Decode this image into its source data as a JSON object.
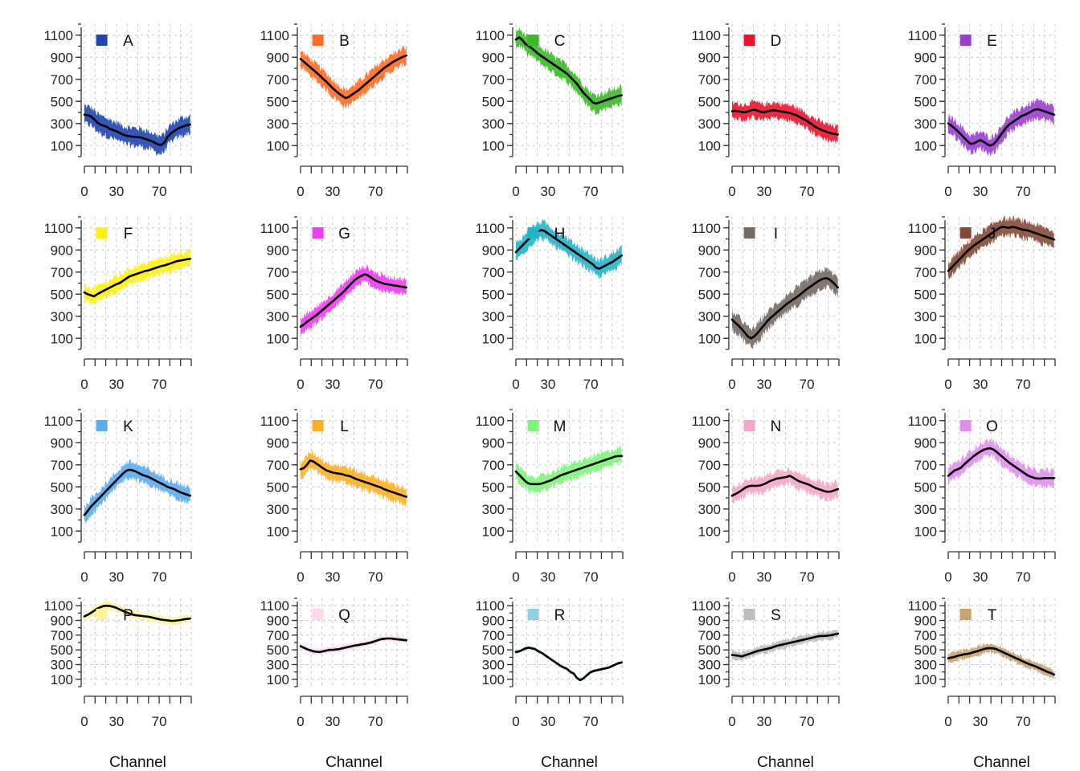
{
  "chart_data": {
    "type": "area",
    "layout": "small-multiples 4 rows x 5 columns",
    "grid": true,
    "legend_placement": "top-left inside each panel",
    "x": [
      0,
      3,
      6,
      9,
      12,
      15,
      18,
      21,
      24,
      27,
      30,
      33,
      36,
      39,
      42,
      45,
      48,
      51,
      54,
      57,
      60,
      63,
      66,
      69,
      72,
      75,
      78,
      81,
      84,
      87,
      90,
      93,
      96,
      99
    ],
    "xlim": [
      0,
      100
    ],
    "xticks": [
      0,
      30,
      70
    ],
    "ylim": [
      0,
      1200
    ],
    "yticks": [
      100,
      300,
      500,
      700,
      900,
      1100
    ],
    "panels": [
      {
        "name": "A",
        "color": "#1f45b0",
        "mean": [
          380,
          375,
          365,
          340,
          310,
          290,
          280,
          270,
          250,
          240,
          230,
          215,
          200,
          190,
          185,
          180,
          178,
          176,
          170,
          160,
          150,
          140,
          125,
          110,
          105,
          130,
          180,
          210,
          230,
          250,
          265,
          275,
          285,
          290
        ],
        "band": 80
      },
      {
        "name": "B",
        "color": "#ff6a26",
        "mean": [
          885,
          860,
          835,
          810,
          785,
          760,
          735,
          705,
          680,
          650,
          620,
          595,
          570,
          550,
          530,
          540,
          560,
          580,
          600,
          625,
          650,
          675,
          700,
          725,
          750,
          775,
          800,
          820,
          840,
          860,
          875,
          890,
          905,
          915
        ],
        "band": 75
      },
      {
        "name": "C",
        "color": "#3db82a",
        "mean": [
          1060,
          1080,
          1055,
          1020,
          1000,
          980,
          955,
          930,
          910,
          890,
          870,
          850,
          830,
          810,
          790,
          770,
          750,
          720,
          690,
          660,
          620,
          580,
          550,
          520,
          490,
          480,
          490,
          500,
          510,
          520,
          530,
          540,
          550,
          555
        ],
        "band": 75
      },
      {
        "name": "D",
        "color": "#e8142e",
        "mean": [
          410,
          415,
          410,
          405,
          400,
          410,
          420,
          425,
          415,
          405,
          400,
          410,
          415,
          420,
          415,
          410,
          405,
          400,
          395,
          385,
          375,
          360,
          345,
          330,
          310,
          290,
          270,
          255,
          240,
          230,
          220,
          210,
          205,
          200
        ],
        "band": 70
      },
      {
        "name": "E",
        "color": "#9b3fd0",
        "mean": [
          300,
          280,
          255,
          230,
          200,
          170,
          140,
          115,
          120,
          135,
          150,
          135,
          115,
          100,
          110,
          140,
          180,
          220,
          260,
          290,
          310,
          330,
          350,
          370,
          380,
          395,
          410,
          425,
          430,
          420,
          410,
          400,
          390,
          380
        ],
        "band": 75
      },
      {
        "name": "F",
        "color": "#ffee1a",
        "mean": [
          515,
          500,
          490,
          480,
          500,
          515,
          530,
          545,
          560,
          575,
          590,
          600,
          620,
          640,
          660,
          670,
          680,
          690,
          700,
          710,
          715,
          725,
          735,
          745,
          755,
          760,
          770,
          780,
          790,
          800,
          805,
          810,
          815,
          820
        ],
        "band": 70
      },
      {
        "name": "G",
        "color": "#f03cf0",
        "mean": [
          205,
          225,
          250,
          270,
          290,
          310,
          335,
          360,
          385,
          410,
          435,
          460,
          485,
          510,
          540,
          570,
          600,
          630,
          650,
          665,
          680,
          670,
          650,
          630,
          615,
          605,
          595,
          590,
          585,
          580,
          575,
          570,
          565,
          560
        ],
        "band": 70
      },
      {
        "name": "H",
        "color": "#26b3c8",
        "mean": [
          880,
          910,
          940,
          970,
          1000,
          1030,
          1050,
          1070,
          1080,
          1070,
          1050,
          1030,
          1010,
          990,
          970,
          950,
          930,
          910,
          890,
          870,
          850,
          830,
          810,
          790,
          770,
          740,
          730,
          745,
          760,
          775,
          790,
          810,
          830,
          850
        ],
        "band": 75
      },
      {
        "name": "I",
        "color": "#766a62",
        "mean": [
          270,
          240,
          215,
          185,
          150,
          115,
          100,
          120,
          150,
          185,
          220,
          255,
          285,
          310,
          335,
          360,
          385,
          410,
          430,
          450,
          470,
          490,
          515,
          540,
          560,
          580,
          600,
          620,
          635,
          645,
          640,
          620,
          590,
          560
        ],
        "band": 80
      },
      {
        "name": "J",
        "color": "#844a38",
        "mean": [
          710,
          740,
          770,
          800,
          830,
          860,
          890,
          915,
          940,
          960,
          980,
          1000,
          1020,
          1040,
          1060,
          1080,
          1100,
          1110,
          1105,
          1100,
          1110,
          1105,
          1095,
          1085,
          1080,
          1075,
          1065,
          1055,
          1045,
          1035,
          1025,
          1015,
          1005,
          995
        ],
        "band": 75
      },
      {
        "name": "K",
        "color": "#5aacf0",
        "mean": [
          245,
          280,
          320,
          350,
          380,
          410,
          440,
          470,
          500,
          530,
          560,
          590,
          620,
          645,
          655,
          650,
          640,
          625,
          610,
          600,
          590,
          575,
          560,
          545,
          530,
          515,
          500,
          490,
          480,
          465,
          450,
          440,
          430,
          420
        ],
        "band": 70
      },
      {
        "name": "L",
        "color": "#fbb028",
        "mean": [
          660,
          670,
          700,
          740,
          730,
          710,
          690,
          670,
          650,
          640,
          630,
          625,
          620,
          615,
          605,
          600,
          590,
          575,
          565,
          555,
          545,
          535,
          525,
          515,
          505,
          495,
          480,
          470,
          460,
          450,
          440,
          430,
          420,
          410
        ],
        "band": 75
      },
      {
        "name": "M",
        "color": "#7ef57a",
        "mean": [
          640,
          610,
          580,
          550,
          530,
          525,
          525,
          525,
          530,
          540,
          550,
          560,
          575,
          590,
          605,
          615,
          625,
          635,
          645,
          655,
          665,
          675,
          685,
          695,
          705,
          715,
          725,
          735,
          745,
          755,
          765,
          775,
          780,
          780
        ],
        "band": 70
      },
      {
        "name": "N",
        "color": "#f5a6c8",
        "mean": [
          420,
          435,
          450,
          470,
          490,
          505,
          510,
          510,
          510,
          515,
          525,
          540,
          555,
          565,
          575,
          580,
          585,
          590,
          600,
          585,
          565,
          550,
          540,
          530,
          520,
          505,
          490,
          480,
          470,
          460,
          455,
          460,
          470,
          480
        ],
        "band": 70
      },
      {
        "name": "O",
        "color": "#e08ff0",
        "mean": [
          600,
          625,
          650,
          660,
          675,
          705,
          730,
          755,
          780,
          800,
          820,
          835,
          845,
          850,
          840,
          820,
          795,
          770,
          745,
          720,
          700,
          680,
          660,
          640,
          620,
          600,
          590,
          580,
          575,
          575,
          580,
          580,
          580,
          580
        ],
        "band": 70
      },
      {
        "name": "P",
        "color": "#fff29c",
        "mean": [
          955,
          975,
          1000,
          1030,
          1060,
          1080,
          1095,
          1100,
          1095,
          1085,
          1070,
          1050,
          1030,
          1010,
          995,
          980,
          970,
          965,
          960,
          955,
          950,
          940,
          930,
          920,
          910,
          905,
          900,
          895,
          895,
          900,
          905,
          915,
          920,
          925
        ],
        "band": 55
      },
      {
        "name": "Q",
        "color": "#ffd6ee",
        "mean": [
          550,
          530,
          510,
          495,
          480,
          475,
          470,
          480,
          490,
          500,
          500,
          505,
          510,
          520,
          530,
          540,
          550,
          560,
          565,
          575,
          580,
          590,
          600,
          615,
          630,
          645,
          650,
          655,
          655,
          650,
          645,
          640,
          635,
          630
        ],
        "band": 40
      },
      {
        "name": "R",
        "color": "#8ed1e0",
        "mean": [
          470,
          480,
          500,
          520,
          530,
          520,
          510,
          480,
          460,
          430,
          400,
          370,
          340,
          310,
          280,
          260,
          240,
          200,
          180,
          120,
          90,
          110,
          150,
          190,
          210,
          220,
          230,
          240,
          250,
          260,
          280,
          300,
          320,
          330
        ],
        "band": 20
      },
      {
        "name": "S",
        "color": "#bdbdbd",
        "mean": [
          430,
          425,
          420,
          410,
          425,
          440,
          455,
          470,
          485,
          495,
          505,
          515,
          525,
          540,
          555,
          565,
          575,
          585,
          595,
          605,
          615,
          625,
          635,
          645,
          655,
          665,
          675,
          685,
          690,
          690,
          695,
          700,
          710,
          720
        ],
        "band": 55
      },
      {
        "name": "T",
        "color": "#c9a46c",
        "mean": [
          385,
          395,
          405,
          420,
          430,
          440,
          445,
          455,
          470,
          480,
          495,
          510,
          520,
          525,
          520,
          510,
          490,
          470,
          450,
          430,
          410,
          390,
          370,
          350,
          330,
          310,
          295,
          280,
          260,
          240,
          220,
          200,
          185,
          165
        ],
        "band": 60
      }
    ],
    "xlabel": "Channel",
    "ylabel": ""
  }
}
